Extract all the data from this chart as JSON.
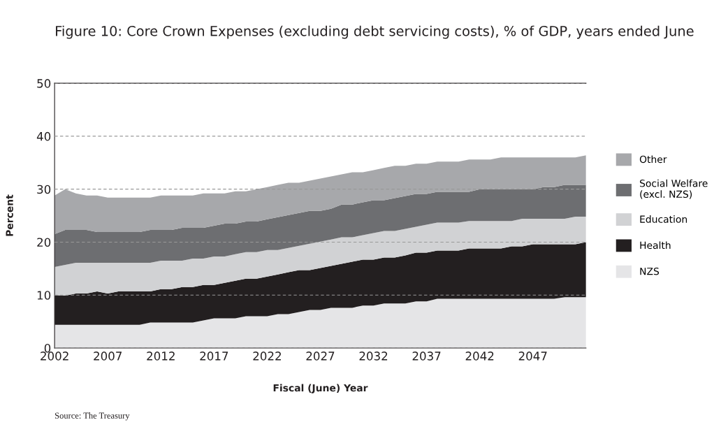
{
  "chart_data": {
    "type": "area",
    "stacked": true,
    "title": "Figure 10: Core Crown Expenses (excluding debt servicing costs), % of GDP, years ended June",
    "xlabel": "Fiscal (June) Year",
    "ylabel": "Percent",
    "annotations": [
      "Source: The Treasury"
    ],
    "x": [
      2002,
      2003,
      2004,
      2005,
      2006,
      2007,
      2008,
      2009,
      2010,
      2011,
      2012,
      2013,
      2014,
      2015,
      2016,
      2017,
      2018,
      2019,
      2020,
      2021,
      2022,
      2023,
      2024,
      2025,
      2026,
      2027,
      2028,
      2029,
      2030,
      2031,
      2032,
      2033,
      2034,
      2035,
      2036,
      2037,
      2038,
      2039,
      2040,
      2041,
      2042,
      2043,
      2044,
      2045,
      2046,
      2047,
      2048,
      2049,
      2050,
      2051,
      2052
    ],
    "series": [
      {
        "name": "NZS",
        "color": "#e5e5e7",
        "values": [
          4.4,
          4.4,
          4.4,
          4.4,
          4.4,
          4.4,
          4.4,
          4.4,
          4.4,
          4.8,
          4.8,
          4.8,
          4.8,
          4.8,
          5.2,
          5.6,
          5.6,
          5.6,
          6.0,
          6.0,
          6.0,
          6.4,
          6.4,
          6.8,
          7.2,
          7.2,
          7.6,
          7.6,
          7.6,
          8.0,
          8.0,
          8.4,
          8.4,
          8.4,
          8.8,
          8.8,
          9.3,
          9.3,
          9.3,
          9.3,
          9.3,
          9.3,
          9.3,
          9.3,
          9.3,
          9.3,
          9.3,
          9.3,
          9.6,
          9.6,
          9.6
        ]
      },
      {
        "name": "Health",
        "color": "#231f20",
        "values": [
          5.6,
          5.5,
          5.9,
          5.9,
          6.3,
          5.9,
          6.3,
          6.3,
          6.3,
          5.9,
          6.3,
          6.3,
          6.7,
          6.7,
          6.7,
          6.3,
          6.7,
          7.1,
          7.1,
          7.1,
          7.5,
          7.5,
          7.9,
          7.9,
          7.5,
          7.9,
          7.9,
          8.3,
          8.7,
          8.7,
          8.7,
          8.7,
          8.7,
          9.1,
          9.2,
          9.2,
          9.1,
          9.1,
          9.1,
          9.5,
          9.5,
          9.5,
          9.5,
          9.9,
          9.9,
          10.3,
          10.3,
          10.3,
          10.0,
          10.0,
          10.4
        ]
      },
      {
        "name": "Education",
        "color": "#d1d2d4",
        "values": [
          5.3,
          5.8,
          5.8,
          5.8,
          5.4,
          5.8,
          5.4,
          5.4,
          5.4,
          5.4,
          5.4,
          5.4,
          5.0,
          5.4,
          5.0,
          5.4,
          5.0,
          5.0,
          5.0,
          5.0,
          5.0,
          4.6,
          4.6,
          4.6,
          5.0,
          5.0,
          5.0,
          5.0,
          4.6,
          4.6,
          5.0,
          5.0,
          5.0,
          5.0,
          4.9,
          5.3,
          5.3,
          5.3,
          5.3,
          5.2,
          5.2,
          5.2,
          5.2,
          4.8,
          5.2,
          4.8,
          4.8,
          4.8,
          4.8,
          5.2,
          4.8
        ]
      },
      {
        "name": "Social Welfare\n(excl. NZS)",
        "color": "#6d6e71",
        "values": [
          6.2,
          6.6,
          6.2,
          6.2,
          5.8,
          5.8,
          5.8,
          5.8,
          5.8,
          6.2,
          5.8,
          5.8,
          6.2,
          5.8,
          5.8,
          5.8,
          6.2,
          5.8,
          5.8,
          5.8,
          5.8,
          6.2,
          6.2,
          6.2,
          6.2,
          5.8,
          5.8,
          6.2,
          6.2,
          6.2,
          6.2,
          5.8,
          6.2,
          6.2,
          6.2,
          5.8,
          5.8,
          5.8,
          5.8,
          5.5,
          6.0,
          6.0,
          6.0,
          6.0,
          5.6,
          5.6,
          6.0,
          6.0,
          6.4,
          6.0,
          6.0
        ]
      },
      {
        "name": "Other",
        "color": "#a7a8ab",
        "values": [
          7.3,
          7.7,
          6.9,
          6.5,
          6.9,
          6.5,
          6.5,
          6.5,
          6.5,
          6.1,
          6.5,
          6.5,
          6.1,
          6.1,
          6.5,
          6.1,
          5.7,
          6.1,
          5.7,
          6.1,
          6.1,
          6.1,
          6.1,
          5.7,
          5.7,
          6.1,
          6.1,
          5.7,
          6.1,
          5.7,
          5.7,
          6.1,
          6.1,
          5.7,
          5.7,
          5.7,
          5.7,
          5.7,
          5.7,
          6.1,
          5.6,
          5.6,
          6.0,
          6.0,
          6.0,
          6.0,
          5.6,
          5.6,
          5.2,
          5.2,
          5.6
        ]
      }
    ],
    "xlim": [
      2002,
      2052
    ],
    "xticks": [
      2002,
      2007,
      2012,
      2017,
      2022,
      2027,
      2032,
      2037,
      2042,
      2047
    ],
    "ylim": [
      0,
      50
    ],
    "yticks": [
      0,
      10,
      20,
      30,
      40,
      50
    ],
    "grid": "y",
    "legend": "right"
  }
}
